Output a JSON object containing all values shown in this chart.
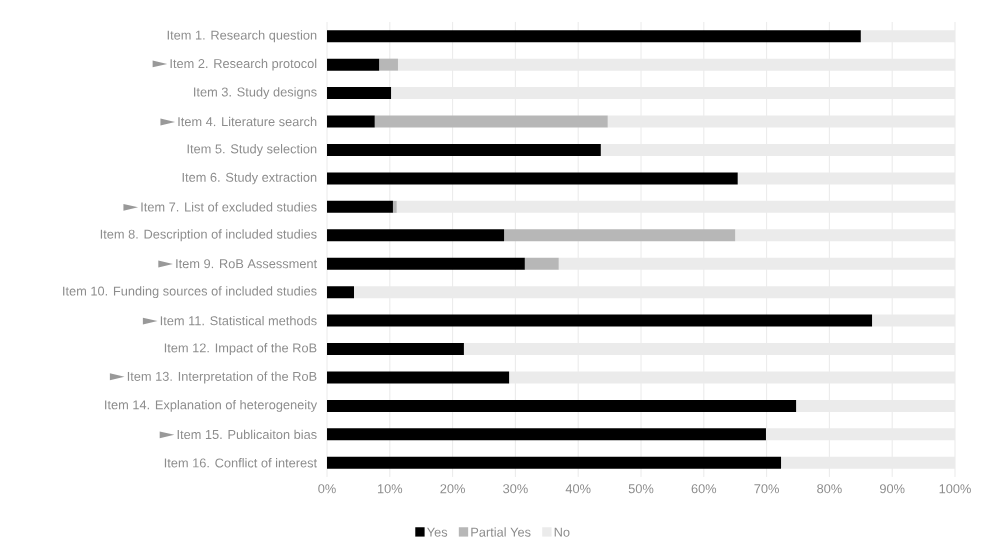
{
  "chart_data": {
    "type": "bar",
    "orientation": "horizontal",
    "stacked": true,
    "categories": [
      "Item 1. Research question",
      "Item 2. Research protocol",
      "Item 3. Study designs",
      "Item 4. Literature search",
      "Item 5. Study selection",
      "Item 6. Study extraction",
      "Item 7. List of excluded studies",
      "Item 8. Description of included studies",
      "Item 9. RoB Assessment",
      "Item 10. Funding sources of included studies",
      "Item 11. Statistical methods",
      "Item 12. Impact of the RoB",
      "Item 13. Interpretation of the RoB",
      "Item 14. Explanation of heterogeneity",
      "Item 15. Publicaiton bias",
      "Item 16. Conflict of interest"
    ],
    "series": [
      {
        "name": "Yes",
        "color": "#000000",
        "values": [
          85.0,
          8.3,
          10.2,
          7.6,
          43.6,
          65.4,
          10.5,
          28.2,
          31.5,
          4.3,
          86.8,
          21.8,
          29.0,
          74.7,
          69.9,
          72.3
        ]
      },
      {
        "name": "Partial Yes",
        "color": "#b7b7b7",
        "values": [
          0,
          3.0,
          0,
          37.1,
          0,
          0,
          0.6,
          36.8,
          5.4,
          0,
          0,
          0,
          0,
          0,
          0,
          0
        ]
      },
      {
        "name": "No",
        "color": "#ebebeb",
        "values": [
          15.0,
          88.7,
          89.8,
          55.3,
          56.4,
          34.6,
          88.9,
          35.0,
          63.1,
          95.7,
          13.2,
          78.2,
          71.0,
          25.3,
          30.1,
          27.7
        ]
      }
    ],
    "xlim": [
      0,
      100
    ],
    "xticks": [
      {
        "value": 0,
        "label": "0%"
      },
      {
        "value": 10,
        "label": "10%"
      },
      {
        "value": 20,
        "label": "20%"
      },
      {
        "value": 30,
        "label": "30%"
      },
      {
        "value": 40,
        "label": "40%"
      },
      {
        "value": 50,
        "label": "50%"
      },
      {
        "value": 60,
        "label": "60%"
      },
      {
        "value": 70,
        "label": "70%"
      },
      {
        "value": 80,
        "label": "80%"
      },
      {
        "value": 90,
        "label": "90%"
      },
      {
        "value": 100,
        "label": "100%"
      }
    ],
    "grid": "x",
    "legend": "bottom"
  }
}
